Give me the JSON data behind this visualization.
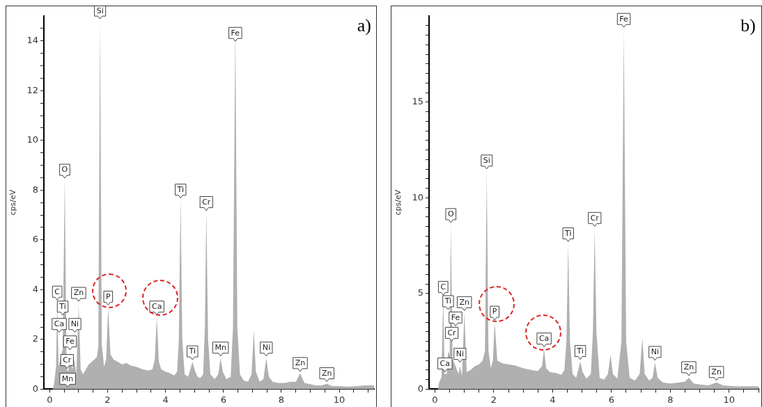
{
  "chart_data": [
    {
      "type": "area",
      "title": "a)",
      "ylabel": "cps/eV",
      "color": "#b0b0b0",
      "grid": false,
      "x": [
        0.1,
        0.15,
        0.22,
        0.26,
        0.31,
        0.38,
        0.45,
        0.52,
        0.58,
        0.6,
        0.65,
        0.7,
        0.78,
        0.85,
        0.92,
        1.0,
        1.07,
        1.15,
        1.25,
        1.35,
        1.45,
        1.55,
        1.63,
        1.68,
        1.74,
        1.8,
        1.88,
        1.95,
        2.02,
        2.1,
        2.2,
        2.35,
        2.5,
        2.65,
        2.8,
        3.0,
        3.2,
        3.4,
        3.55,
        3.63,
        3.7,
        3.77,
        3.85,
        4.0,
        4.15,
        4.3,
        4.4,
        4.46,
        4.52,
        4.58,
        4.66,
        4.78,
        4.86,
        4.93,
        5.0,
        5.1,
        5.2,
        5.3,
        5.36,
        5.41,
        5.47,
        5.55,
        5.7,
        5.82,
        5.9,
        5.98,
        6.1,
        6.25,
        6.33,
        6.41,
        6.48,
        6.57,
        6.7,
        6.85,
        6.97,
        7.05,
        7.12,
        7.25,
        7.38,
        7.48,
        7.57,
        7.7,
        7.9,
        8.1,
        8.3,
        8.5,
        8.65,
        8.8,
        9.0,
        9.2,
        9.4,
        9.57,
        9.75,
        10.0,
        10.3,
        10.6,
        10.9,
        11.2
      ],
      "values": [
        0,
        0.2,
        0.9,
        3.5,
        0.9,
        1.3,
        1.6,
        8.5,
        1.4,
        0.75,
        0.75,
        1.5,
        0.8,
        1.2,
        0.6,
        3.4,
        0.8,
        0.6,
        0.8,
        1.0,
        1.1,
        1.2,
        1.3,
        1.7,
        14.8,
        1.8,
        0.9,
        1.2,
        3.3,
        1.4,
        1.2,
        1.1,
        1.0,
        1.05,
        0.95,
        0.9,
        0.8,
        0.75,
        0.8,
        1.2,
        2.9,
        1.1,
        0.8,
        0.7,
        0.65,
        0.55,
        0.7,
        2.0,
        7.7,
        2.0,
        0.6,
        0.5,
        0.8,
        1.1,
        0.8,
        0.5,
        0.45,
        0.6,
        2.5,
        7.2,
        2.0,
        0.6,
        0.4,
        0.6,
        1.25,
        0.7,
        0.4,
        0.5,
        2.5,
        14.6,
        2.5,
        0.6,
        0.35,
        0.3,
        0.6,
        2.35,
        0.7,
        0.3,
        0.4,
        1.25,
        0.5,
        0.3,
        0.25,
        0.25,
        0.3,
        0.3,
        0.63,
        0.25,
        0.2,
        0.15,
        0.15,
        0.22,
        0.12,
        0.12,
        0.1,
        0.12,
        0.15,
        0.15
      ],
      "xlim": [
        -0.2,
        11.2
      ],
      "xticks": [
        0,
        {
          "value": 0.5,
          "label": null
        },
        {
          "value": 1,
          "label": null
        },
        {
          "value": 1.5,
          "label": null
        },
        2,
        {
          "value": 2.5,
          "label": null
        },
        {
          "value": 3,
          "label": null
        },
        {
          "value": 3.5,
          "label": null
        },
        4,
        {
          "value": 4.5,
          "label": null
        },
        {
          "value": 5,
          "label": null
        },
        {
          "value": 5.5,
          "label": null
        },
        6,
        {
          "value": 6.5,
          "label": null
        },
        {
          "value": 7,
          "label": null
        },
        {
          "value": 7.5,
          "label": null
        },
        8,
        {
          "value": 8.5,
          "label": null
        },
        {
          "value": 9,
          "label": null
        },
        {
          "value": 9.5,
          "label": null
        },
        10,
        {
          "value": 10.5,
          "label": null
        },
        {
          "value": 11,
          "label": null
        }
      ],
      "ylim": [
        0,
        15
      ],
      "yticks": [
        0,
        {
          "value": 0.5,
          "label": null
        },
        {
          "value": 1,
          "label": null
        },
        {
          "value": 1.5,
          "label": null
        },
        2,
        {
          "value": 2.5,
          "label": null
        },
        {
          "value": 3,
          "label": null
        },
        {
          "value": 3.5,
          "label": null
        },
        4,
        {
          "value": 4.5,
          "label": null
        },
        {
          "value": 5,
          "label": null
        },
        {
          "value": 5.5,
          "label": null
        },
        6,
        {
          "value": 6.5,
          "label": null
        },
        {
          "value": 7,
          "label": null
        },
        {
          "value": 7.5,
          "label": null
        },
        8,
        {
          "value": 8.5,
          "label": null
        },
        {
          "value": 9,
          "label": null
        },
        {
          "value": 9.5,
          "label": null
        },
        10,
        {
          "value": 10.5,
          "label": null
        },
        {
          "value": 11,
          "label": null
        },
        {
          "value": 11.5,
          "label": null
        },
        12,
        {
          "value": 12.5,
          "label": null
        },
        {
          "value": 13,
          "label": null
        },
        {
          "value": 13.5,
          "label": null
        },
        14,
        {
          "value": 14.5,
          "label": null
        }
      ],
      "annotations": [
        {
          "text": "Si",
          "x": 1.74,
          "y": 14.8
        },
        {
          "text": "Fe",
          "x": 6.41,
          "y": 13.9
        },
        {
          "text": "O",
          "x": 0.52,
          "y": 8.4
        },
        {
          "text": "Ti",
          "x": 4.52,
          "y": 7.6
        },
        {
          "text": "Cr",
          "x": 5.41,
          "y": 7.1
        },
        {
          "text": "C",
          "x": 0.26,
          "y": 3.5
        },
        {
          "text": "Zn",
          "x": 1.0,
          "y": 3.45
        },
        {
          "text": "P",
          "x": 2.02,
          "y": 3.3
        },
        {
          "text": "Ca",
          "x": 3.7,
          "y": 2.9
        },
        {
          "text": "Ti",
          "x": 0.45,
          "y": 2.9
        },
        {
          "text": "Ca",
          "x": 0.33,
          "y": 2.2
        },
        {
          "text": "Ni",
          "x": 0.87,
          "y": 2.2
        },
        {
          "text": "Fe",
          "x": 0.7,
          "y": 1.5
        },
        {
          "text": "Cr",
          "x": 0.6,
          "y": 0.75
        },
        {
          "text": "Mn",
          "x": 0.62,
          "y": 0
        },
        {
          "text": "Ti",
          "x": 4.93,
          "y": 1.1
        },
        {
          "text": "Mn",
          "x": 5.9,
          "y": 1.25
        },
        {
          "text": "Ni",
          "x": 7.48,
          "y": 1.25
        },
        {
          "text": "Zn",
          "x": 8.65,
          "y": 0.63
        },
        {
          "text": "Zn",
          "x": 9.57,
          "y": 0.22
        }
      ]
    },
    {
      "type": "area",
      "title": "b)",
      "ylabel": "cps/eV",
      "color": "#b0b0b0",
      "grid": false,
      "x": [
        0.1,
        0.15,
        0.22,
        0.28,
        0.33,
        0.4,
        0.45,
        0.5,
        0.54,
        0.6,
        0.7,
        0.8,
        0.85,
        0.92,
        1.0,
        1.08,
        1.2,
        1.35,
        1.5,
        1.62,
        1.7,
        1.76,
        1.82,
        1.9,
        1.97,
        2.03,
        2.12,
        2.3,
        2.5,
        2.7,
        3.0,
        3.3,
        3.5,
        3.64,
        3.71,
        3.78,
        3.9,
        4.1,
        4.3,
        4.4,
        4.47,
        4.53,
        4.59,
        4.68,
        4.8,
        4.87,
        4.94,
        5.02,
        5.15,
        5.3,
        5.37,
        5.43,
        5.49,
        5.6,
        5.75,
        5.88,
        5.97,
        6.05,
        6.2,
        6.34,
        6.42,
        6.5,
        6.62,
        6.8,
        6.96,
        7.05,
        7.13,
        7.28,
        7.4,
        7.48,
        7.57,
        7.75,
        8.0,
        8.3,
        8.5,
        8.63,
        8.8,
        9.0,
        9.3,
        9.57,
        9.8,
        10.2,
        10.6,
        11.0
      ],
      "values": [
        0,
        0.4,
        0.6,
        4.8,
        0.8,
        0.8,
        2.0,
        1.8,
        8.6,
        1.6,
        1.2,
        0.8,
        1.2,
        0.7,
        4.0,
        0.9,
        1.0,
        1.2,
        1.3,
        1.5,
        2.0,
        11.4,
        2.0,
        1.1,
        1.5,
        3.5,
        1.5,
        1.35,
        1.3,
        1.25,
        1.1,
        1.0,
        0.95,
        1.2,
        2.1,
        1.1,
        0.9,
        0.85,
        0.75,
        1.0,
        2.5,
        7.6,
        2.5,
        0.8,
        0.6,
        1.0,
        1.45,
        0.9,
        0.55,
        0.8,
        3.0,
        8.4,
        3.0,
        0.6,
        0.5,
        0.8,
        1.8,
        0.8,
        0.55,
        2.5,
        18.8,
        2.5,
        0.6,
        0.45,
        0.8,
        2.7,
        0.8,
        0.45,
        0.6,
        1.4,
        0.6,
        0.35,
        0.3,
        0.35,
        0.4,
        0.6,
        0.3,
        0.25,
        0.2,
        0.35,
        0.2,
        0.15,
        0.15,
        0.15
      ],
      "xlim": [
        -0.2,
        11.0
      ],
      "xticks": [
        0,
        {
          "value": 0.5,
          "label": null
        },
        {
          "value": 1,
          "label": null
        },
        {
          "value": 1.5,
          "label": null
        },
        2,
        {
          "value": 2.5,
          "label": null
        },
        {
          "value": 3,
          "label": null
        },
        {
          "value": 3.5,
          "label": null
        },
        4,
        {
          "value": 4.5,
          "label": null
        },
        {
          "value": 5,
          "label": null
        },
        {
          "value": 5.5,
          "label": null
        },
        6,
        {
          "value": 6.5,
          "label": null
        },
        {
          "value": 7,
          "label": null
        },
        {
          "value": 7.5,
          "label": null
        },
        8,
        {
          "value": 8.5,
          "label": null
        },
        {
          "value": 9,
          "label": null
        },
        {
          "value": 9.5,
          "label": null
        },
        10,
        {
          "value": 10.5,
          "label": null
        },
        {
          "value": 11,
          "label": null
        }
      ],
      "ylim": [
        0,
        19.5
      ],
      "yticks": [
        0,
        {
          "value": 0.5,
          "label": null
        },
        {
          "value": 1,
          "label": null
        },
        {
          "value": 1.5,
          "label": null
        },
        {
          "value": 2,
          "label": null
        },
        {
          "value": 2.5,
          "label": null
        },
        {
          "value": 3,
          "label": null
        },
        {
          "value": 3.5,
          "label": null
        },
        {
          "value": 4,
          "label": null
        },
        {
          "value": 4.5,
          "label": null
        },
        5,
        {
          "value": 5.5,
          "label": null
        },
        {
          "value": 6,
          "label": null
        },
        {
          "value": 6.5,
          "label": null
        },
        {
          "value": 7,
          "label": null
        },
        {
          "value": 7.5,
          "label": null
        },
        {
          "value": 8,
          "label": null
        },
        {
          "value": 8.5,
          "label": null
        },
        {
          "value": 9,
          "label": null
        },
        {
          "value": 9.5,
          "label": null
        },
        10,
        {
          "value": 10.5,
          "label": null
        },
        {
          "value": 11,
          "label": null
        },
        {
          "value": 11.5,
          "label": null
        },
        {
          "value": 12,
          "label": null
        },
        {
          "value": 12.5,
          "label": null
        },
        {
          "value": 13,
          "label": null
        },
        {
          "value": 13.5,
          "label": null
        },
        {
          "value": 14,
          "label": null
        },
        {
          "value": 14.5,
          "label": null
        },
        15,
        {
          "value": 15.5,
          "label": null
        },
        {
          "value": 16,
          "label": null
        },
        {
          "value": 16.5,
          "label": null
        },
        {
          "value": 17,
          "label": null
        },
        {
          "value": 17.5,
          "label": null
        },
        {
          "value": 18,
          "label": null
        },
        {
          "value": 18.5,
          "label": null
        },
        {
          "value": 19,
          "label": null
        }
      ],
      "annotations": [
        {
          "text": "Fe",
          "x": 6.42,
          "y": 18.8
        },
        {
          "text": "Si",
          "x": 1.76,
          "y": 11.4
        },
        {
          "text": "O",
          "x": 0.54,
          "y": 8.6
        },
        {
          "text": "Cr",
          "x": 5.43,
          "y": 8.4
        },
        {
          "text": "Ti",
          "x": 4.53,
          "y": 7.6
        },
        {
          "text": "C",
          "x": 0.28,
          "y": 4.8
        },
        {
          "text": "Ti",
          "x": 0.45,
          "y": 4.05
        },
        {
          "text": "Zn",
          "x": 1.0,
          "y": 4.0
        },
        {
          "text": "P",
          "x": 2.03,
          "y": 3.5
        },
        {
          "text": "Fe",
          "x": 0.7,
          "y": 3.2
        },
        {
          "text": "Cr",
          "x": 0.57,
          "y": 2.4
        },
        {
          "text": "Ca",
          "x": 3.71,
          "y": 2.1
        },
        {
          "text": "Ti",
          "x": 4.94,
          "y": 1.45
        },
        {
          "text": "Ni",
          "x": 0.85,
          "y": 1.3
        },
        {
          "text": "Ca",
          "x": 0.34,
          "y": 0.8
        },
        {
          "text": "Ni",
          "x": 7.48,
          "y": 1.4
        },
        {
          "text": "Zn",
          "x": 8.63,
          "y": 0.6
        },
        {
          "text": "Zn",
          "x": 9.57,
          "y": 0.35
        }
      ]
    }
  ]
}
